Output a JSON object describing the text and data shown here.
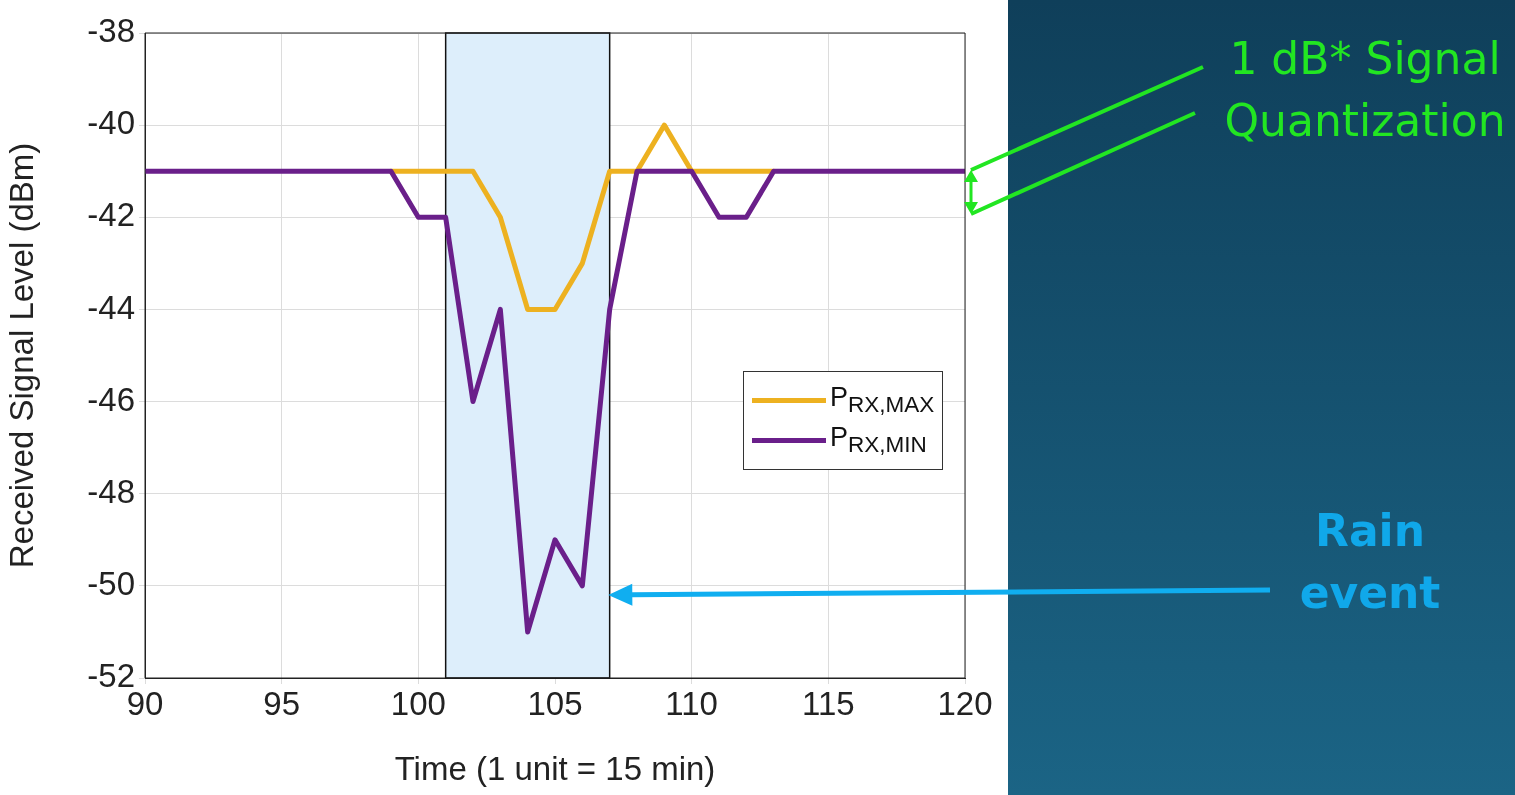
{
  "chart_data": {
    "type": "line",
    "xlabel": "Time (1 unit = 15 min)",
    "ylabel": "Received Signal Level (dBm)",
    "x": [
      90,
      91,
      92,
      93,
      94,
      95,
      96,
      97,
      98,
      99,
      100,
      101,
      102,
      103,
      104,
      105,
      106,
      107,
      108,
      109,
      110,
      111,
      112,
      113,
      114,
      115,
      116,
      117,
      118,
      119,
      120
    ],
    "series": [
      {
        "name": "P$_{RX,MAX}$",
        "color": "#edb120",
        "values": [
          null,
          null,
          null,
          null,
          null,
          null,
          null,
          null,
          null,
          -41,
          -41,
          -41,
          -41,
          -42,
          -44,
          -44,
          -43,
          -41,
          -41,
          -40,
          -41,
          -41,
          -41,
          -41,
          null,
          null,
          null,
          null,
          null,
          null,
          null
        ]
      },
      {
        "name": "P$_{RX,MIN}$",
        "color": "#6a1f8a",
        "values": [
          -41,
          -41,
          -41,
          -41,
          -41,
          -41,
          -41,
          -41,
          -41,
          -41,
          -42,
          -42,
          -46,
          -44,
          -51,
          -49,
          -50,
          -44,
          -41,
          -41,
          -41,
          -42,
          -42,
          -41,
          -41,
          -41,
          -41,
          -41,
          -41,
          -41,
          -41
        ]
      }
    ],
    "xlim": [
      90,
      120
    ],
    "xticks": [
      90,
      95,
      100,
      105,
      110,
      115,
      120
    ],
    "ylim": [
      -52,
      -38
    ],
    "yticks": [
      -52,
      -50,
      -48,
      -46,
      -44,
      -42,
      -40,
      -38
    ],
    "grid": true,
    "legend": "right",
    "marker": "none",
    "line_style": "solid",
    "bands": [
      {
        "axis": "x",
        "from": 101,
        "to": 107,
        "color": "#ddeefb"
      }
    ],
    "annotations": [
      "1 dB* Signal Quantization",
      "Rain event"
    ]
  }
}
